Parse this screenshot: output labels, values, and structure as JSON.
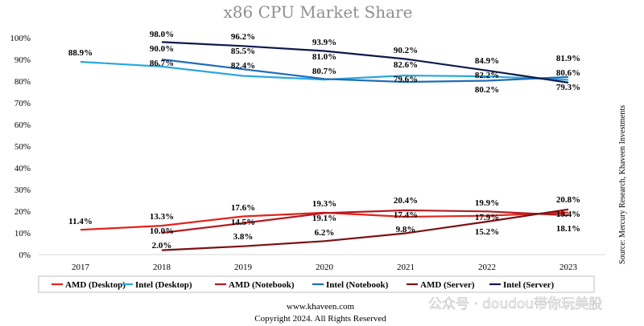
{
  "chart_data": {
    "type": "line",
    "title": "x86 CPU Market Share",
    "categories": [
      "2017",
      "2018",
      "2019",
      "2020",
      "2021",
      "2022",
      "2023"
    ],
    "ylim": [
      0,
      100
    ],
    "yticks": [
      "0%",
      "10%",
      "20%",
      "30%",
      "40%",
      "50%",
      "60%",
      "70%",
      "80%",
      "90%",
      "100%"
    ],
    "grid": false,
    "legend_position": "bottom",
    "series": [
      {
        "name": "AMD (Desktop)",
        "color": "#e3231b",
        "values": [
          11.4,
          13.3,
          17.6,
          19.3,
          17.4,
          17.9,
          19.4
        ],
        "labels": [
          "11.4%",
          "13.3%",
          "17.6%",
          "19.3%",
          "17.4%",
          "17.9%",
          "19.4%"
        ]
      },
      {
        "name": "Intel (Desktop)",
        "color": "#29a8e0",
        "values": [
          88.9,
          86.7,
          82.4,
          80.7,
          82.6,
          82.2,
          80.6
        ],
        "labels": [
          "88.9%",
          "86.7%",
          "82.4%",
          "80.7%",
          "82.6%",
          "82.2%",
          "80.6%"
        ]
      },
      {
        "name": "AMD (Notebook)",
        "color": "#b31b21",
        "values": [
          null,
          10.0,
          14.5,
          19.1,
          20.4,
          19.9,
          18.1
        ],
        "labels": [
          "",
          "10.0%",
          "14.5%",
          "19.1%",
          "20.4%",
          "19.9%",
          "18.1%"
        ]
      },
      {
        "name": "Intel (Notebook)",
        "color": "#1f6db5",
        "values": [
          null,
          90.0,
          85.5,
          81.0,
          79.6,
          80.2,
          81.9
        ],
        "labels": [
          "",
          "90.0%",
          "85.5%",
          "81.0%",
          "79.6%",
          "80.2%",
          "81.9%"
        ]
      },
      {
        "name": "AMD (Server)",
        "color": "#7b1114",
        "values": [
          null,
          2.0,
          3.8,
          6.2,
          9.8,
          15.2,
          20.8
        ],
        "labels": [
          "",
          "2.0%",
          "3.8%",
          "6.2%",
          "9.8%",
          "15.2%",
          "20.8%"
        ]
      },
      {
        "name": "Intel (Server)",
        "color": "#0d1a4d",
        "values": [
          null,
          98.0,
          96.2,
          93.9,
          90.2,
          84.9,
          79.3
        ],
        "labels": [
          "",
          "98.0%",
          "96.2%",
          "93.9%",
          "90.2%",
          "84.9%",
          "79.3%"
        ]
      }
    ],
    "source": "Source: Mercury Research, Khaveen Investments"
  },
  "footer": {
    "website": "www.khaveen.com",
    "copyright": "Copyright 2024. All Rights Reserved"
  },
  "watermark": "公众号 · doudou带你玩美股"
}
